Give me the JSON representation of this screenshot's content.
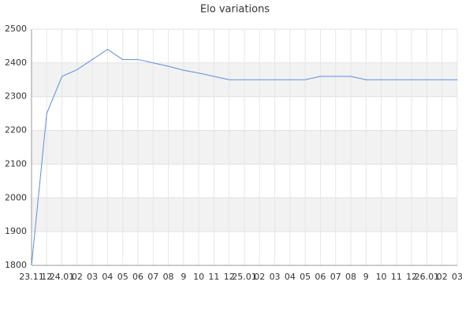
{
  "chart_data": {
    "type": "line",
    "title": "Elo variations",
    "categories": [
      "23.11",
      "12",
      "24.01",
      "02",
      "03",
      "04",
      "05",
      "06",
      "07",
      "08",
      "9",
      "10",
      "11",
      "12",
      "25.01",
      "02",
      "03",
      "04",
      "05",
      "06",
      "07",
      "08",
      "9",
      "10",
      "11",
      "12",
      "26.01",
      "02",
      "03"
    ],
    "series": [
      {
        "name": "Elo",
        "color": "#5b8fd9",
        "values": [
          1800,
          2250,
          2360,
          2380,
          2410,
          2440,
          2410,
          2410,
          2400,
          2390,
          2378,
          2370,
          2360,
          2350,
          2350,
          2350,
          2350,
          2350,
          2350,
          2360,
          2360,
          2360,
          2350,
          2350,
          2350,
          2350,
          2350,
          2350,
          2350
        ]
      }
    ],
    "ylim": [
      1800,
      2500
    ],
    "yticks": [
      1800,
      1900,
      2000,
      2100,
      2200,
      2300,
      2400,
      2500
    ],
    "grid": true
  }
}
